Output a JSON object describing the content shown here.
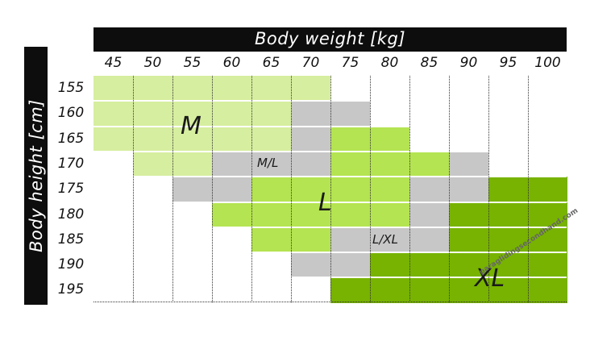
{
  "header": {
    "title": "Body weight [kg]"
  },
  "side": {
    "title": "Body height [cm]"
  },
  "columns": [
    "45",
    "50",
    "55",
    "60",
    "65",
    "70",
    "75",
    "80",
    "85",
    "90",
    "95",
    "100"
  ],
  "rows": [
    "155",
    "160",
    "165",
    "170",
    "175",
    "180",
    "185",
    "190",
    "195"
  ],
  "size_labels": {
    "m": "M",
    "ml": "M/L",
    "l": "L",
    "lxl": "L/XL",
    "xl": "XL"
  },
  "colors": {
    "m": "#d6ee9f",
    "ml": "#c7c7c7",
    "l": "#b4e451",
    "lxl": "#c7c7c7",
    "xl": "#77b300"
  },
  "table_data": [
    {
      "height": "155",
      "cells": [
        "M",
        "M",
        "M",
        "M",
        "M",
        "M",
        "",
        "",
        "",
        "",
        "",
        ""
      ]
    },
    {
      "height": "160",
      "cells": [
        "M",
        "M",
        "M",
        "M",
        "M",
        "M/L",
        "M/L",
        "",
        "",
        "",
        "",
        ""
      ]
    },
    {
      "height": "165",
      "cells": [
        "M",
        "M",
        "M",
        "M",
        "M",
        "M/L",
        "L",
        "L",
        "",
        "",
        "",
        ""
      ]
    },
    {
      "height": "170",
      "cells": [
        "",
        "M",
        "M",
        "M/L",
        "M/L",
        "M/L",
        "L",
        "L",
        "L",
        "L/XL",
        "",
        ""
      ]
    },
    {
      "height": "175",
      "cells": [
        "",
        "",
        "M/L",
        "M/L",
        "L",
        "L",
        "L",
        "L",
        "L/XL",
        "L/XL",
        "XL",
        "XL"
      ]
    },
    {
      "height": "180",
      "cells": [
        "",
        "",
        "",
        "L",
        "L",
        "L",
        "L",
        "L",
        "L/XL",
        "XL",
        "XL",
        "XL"
      ]
    },
    {
      "height": "185",
      "cells": [
        "",
        "",
        "",
        "",
        "L",
        "L",
        "L/XL",
        "L/XL",
        "L/XL",
        "XL",
        "XL",
        "XL"
      ]
    },
    {
      "height": "190",
      "cells": [
        "",
        "",
        "",
        "",
        "",
        "L/XL",
        "L/XL",
        "XL",
        "XL",
        "XL",
        "XL",
        "XL"
      ]
    },
    {
      "height": "195",
      "cells": [
        "",
        "",
        "",
        "",
        "",
        "",
        "XL",
        "XL",
        "XL",
        "XL",
        "XL",
        "XL"
      ]
    }
  ],
  "watermark": "paraglidingsecondhand.com"
}
